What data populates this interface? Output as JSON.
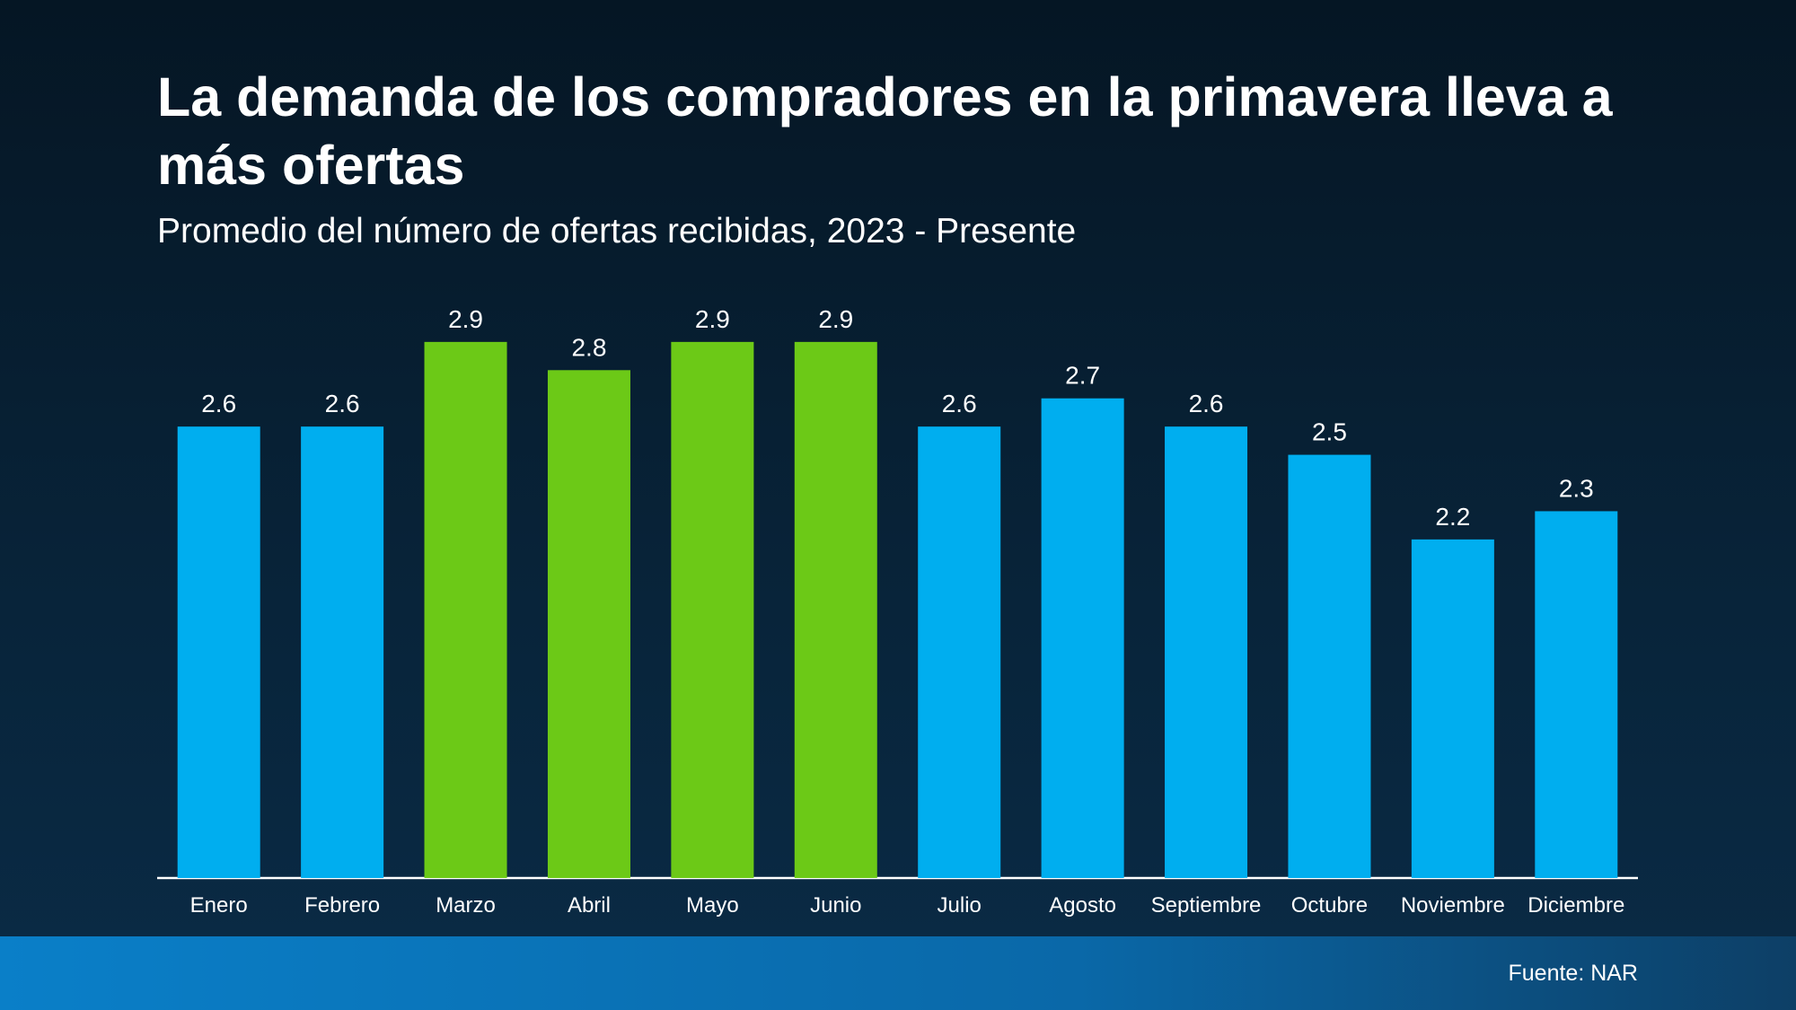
{
  "chart_data": {
    "type": "bar",
    "title": "La demanda de los compradores en la primavera lleva a más ofertas",
    "subtitle": "Promedio del número de ofertas recibidas, 2023 - Presente",
    "categories": [
      "Enero",
      "Febrero",
      "Marzo",
      "Abril",
      "Mayo",
      "Junio",
      "Julio",
      "Agosto",
      "Septiembre",
      "Octubre",
      "Noviembre",
      "Diciembre"
    ],
    "values": [
      2.6,
      2.6,
      2.9,
      2.8,
      2.9,
      2.9,
      2.6,
      2.7,
      2.6,
      2.5,
      2.2,
      2.3
    ],
    "colors": [
      "#00aeef",
      "#00aeef",
      "#6cc917",
      "#6cc917",
      "#6cc917",
      "#6cc917",
      "#00aeef",
      "#00aeef",
      "#00aeef",
      "#00aeef",
      "#00aeef",
      "#00aeef"
    ],
    "ylim": [
      1,
      3.1
    ],
    "source": "Fuente: NAR"
  }
}
